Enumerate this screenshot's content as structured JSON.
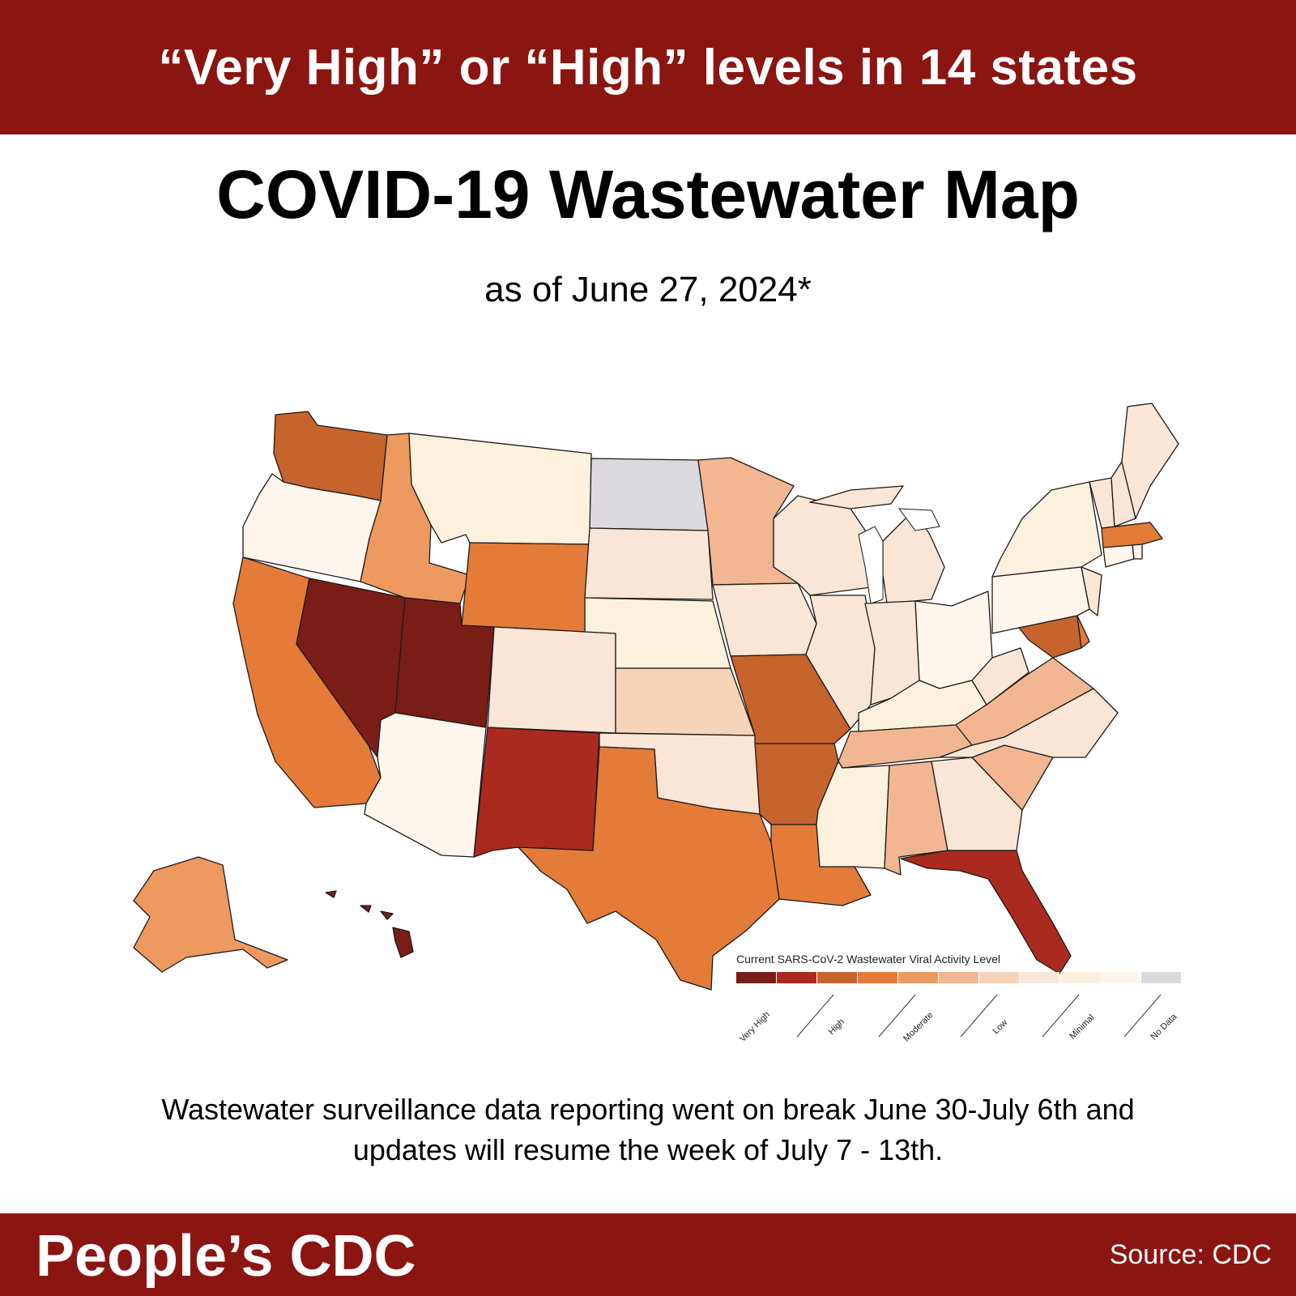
{
  "banner": {
    "headline": "“Very High” or “High” levels in 14 states"
  },
  "title": "COVID-19 Wastewater Map",
  "subtitle": "as of June 27, 2024*",
  "legend": {
    "title": "Current SARS-CoV-2 Wastewater Viral Activity Level",
    "levels": [
      {
        "label": "Very High",
        "color": "#7b1d17"
      },
      {
        "label": "High",
        "color": "#ab2a20"
      },
      {
        "label": "Moderate",
        "color": "#c7632c"
      },
      {
        "label": "Low",
        "color": "#e47b38"
      },
      {
        "label": "Minimal",
        "color": "#ee9960"
      },
      {
        "label": "No Data",
        "color": "#f3b692"
      }
    ],
    "swatches": [
      "#7b1d17",
      "#ab2a20",
      "#c7632c",
      "#e47b38",
      "#ee9960",
      "#f3b692",
      "#f7d3b8",
      "#fae6d6",
      "#fbf1dc",
      "#fef6ec",
      "#dcd9de"
    ]
  },
  "states": {
    "WA": "#c7632c",
    "OR": "#fef6ec",
    "CA": "#e47b38",
    "NV": "#7b1d17",
    "ID": "#ee9960",
    "MT": "#fbf1dc",
    "WY": "#e47b38",
    "UT": "#7b1d17",
    "AZ": "#fef6ec",
    "CO": "#fae6d6",
    "NM": "#ab2a20",
    "ND": "#dcd9de",
    "SD": "#fae6d6",
    "NE": "#fbf1dc",
    "KS": "#f7d3b8",
    "OK": "#fae6d6",
    "TX": "#e47b38",
    "MN": "#f3b692",
    "IA": "#fae6d6",
    "MO": "#c7632c",
    "AR": "#c7632c",
    "LA": "#e47b38",
    "WI": "#fae6d6",
    "IL": "#fae6d6",
    "MI": "#fae6d6",
    "IN": "#fae6d6",
    "OH": "#fef6ec",
    "KY": "#fbf1dc",
    "TN": "#f3b692",
    "MS": "#fbf1dc",
    "AL": "#f3b692",
    "GA": "#fae6d6",
    "FL": "#ab2a20",
    "SC": "#f3b692",
    "NC": "#fae6d6",
    "VA": "#f3b692",
    "WV": "#fae6d6",
    "PA": "#fef6ec",
    "NY": "#fbf1dc",
    "NJ": "#fae6d6",
    "DE": "#e47b38",
    "MD": "#c7632c",
    "CT": "#fef6ec",
    "RI": "#fef6ec",
    "MA": "#e47b38",
    "VT": "#fae6d6",
    "NH": "#fae6d6",
    "ME": "#fae6d6",
    "AK": "#ee9960",
    "HI": "#7b1d17"
  },
  "note": {
    "line1": "Wastewater surveillance data reporting went on break June 30-July 6th and",
    "line2": "updates will resume the week of July 7 - 13th."
  },
  "footer": {
    "brand": "People’s CDC",
    "source": "Source: CDC"
  }
}
